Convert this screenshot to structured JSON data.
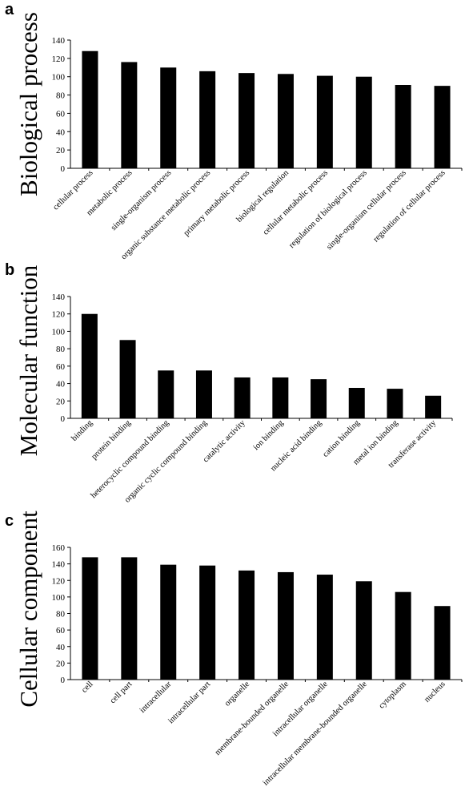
{
  "chart_data": [
    {
      "type": "bar",
      "panel_letter": "a",
      "ylabel": "Biological process",
      "ylim": [
        0,
        140
      ],
      "yticks": [
        0,
        20,
        40,
        60,
        80,
        100,
        120,
        140
      ],
      "grid": false,
      "color": "#000000",
      "categories": [
        "cellular process",
        "metabolic process",
        "single-organism process",
        "organic substance metabolic process",
        "primary metabolic process",
        "biological regulation",
        "cellular metabolic process",
        "regulation of biological process",
        "single-organism cellular process",
        "regulation of cellular process"
      ],
      "values": [
        128,
        116,
        110,
        106,
        104,
        103,
        101,
        100,
        91,
        90
      ]
    },
    {
      "type": "bar",
      "panel_letter": "b",
      "ylabel": "Molecular function",
      "ylim": [
        0,
        140
      ],
      "yticks": [
        0,
        20,
        40,
        60,
        80,
        100,
        120,
        140
      ],
      "grid": false,
      "color": "#000000",
      "categories": [
        "binding",
        "protein binding",
        "heterocyclic compound binding",
        "organic cyclic compound binding",
        "catalytic activity",
        "ion binding",
        "nucleic acid binding",
        "cation binding",
        "metal ion binding",
        "transferase activity"
      ],
      "values": [
        120,
        90,
        55,
        55,
        47,
        47,
        45,
        35,
        34,
        26
      ]
    },
    {
      "type": "bar",
      "panel_letter": "c",
      "ylabel": "Cellular component",
      "ylim": [
        0,
        160
      ],
      "yticks": [
        0,
        20,
        40,
        60,
        80,
        100,
        120,
        140,
        160
      ],
      "grid": false,
      "color": "#000000",
      "categories": [
        "cell",
        "cell part",
        "intracellular",
        "intracellular part",
        "organelle",
        "membrane-bounded organelle",
        "intracellular organelle",
        "intracellular membrane-bounded organelle",
        "cytoplasm",
        "nucleus"
      ],
      "values": [
        148,
        148,
        139,
        138,
        132,
        130,
        127,
        119,
        106,
        89
      ]
    }
  ]
}
